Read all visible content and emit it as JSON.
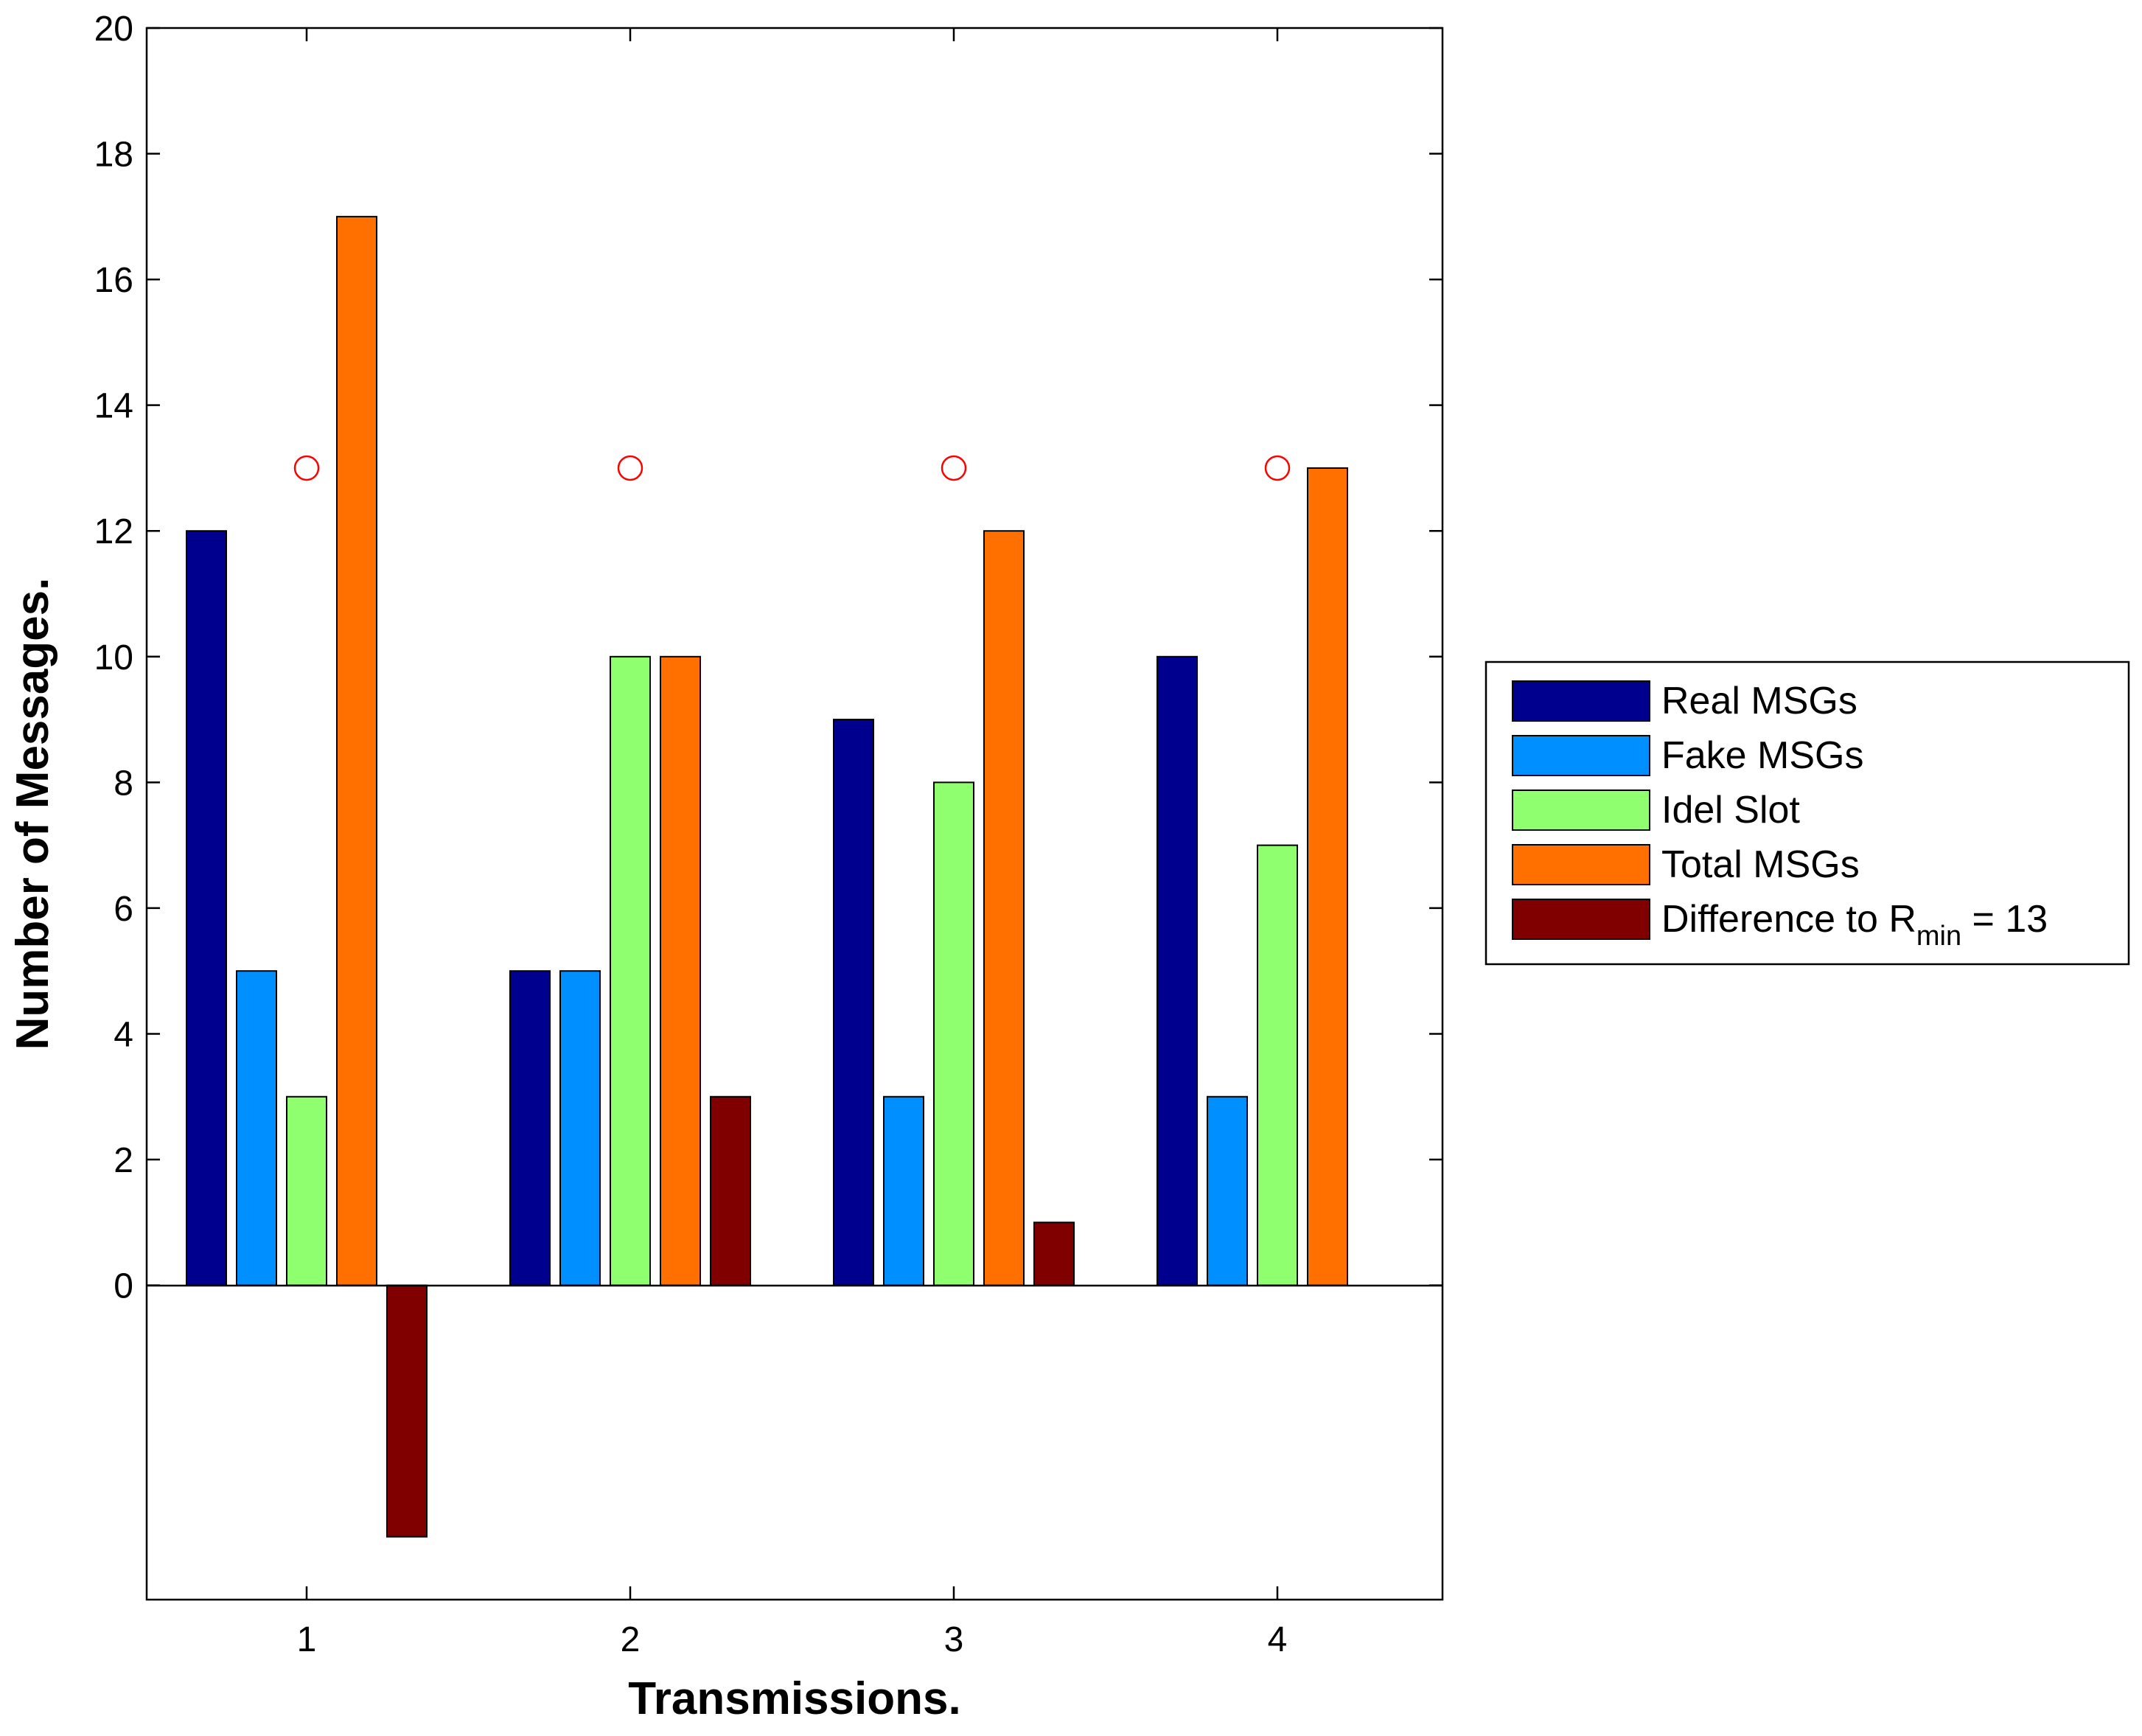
{
  "chart_data": {
    "type": "bar",
    "categories": [
      "1",
      "2",
      "3",
      "4"
    ],
    "xlabel": "Transmissions.",
    "ylabel": "Number of Messages.",
    "ylim": [
      -5,
      20
    ],
    "yticks": [
      "0",
      "2",
      "4",
      "6",
      "8",
      "10",
      "12",
      "14",
      "16",
      "18",
      "20"
    ],
    "grid": false,
    "legend_position": "right",
    "series": [
      {
        "name": "Real MSGs",
        "color": "#00008f",
        "values": [
          12,
          5,
          9,
          10
        ]
      },
      {
        "name": "Fake MSGs",
        "color": "#008fff",
        "values": [
          5,
          5,
          3,
          3
        ]
      },
      {
        "name": "Idel Slot",
        "color": "#8fff70",
        "values": [
          3,
          10,
          8,
          7
        ]
      },
      {
        "name": "Total MSGs",
        "color": "#ff7000",
        "values": [
          17,
          10,
          12,
          13
        ]
      },
      {
        "name": "Difference to R",
        "name_subscript": "min",
        "name_suffix": " = 13",
        "color": "#800000",
        "values": [
          -4,
          3,
          1,
          0
        ]
      }
    ],
    "markers": {
      "name": "R_min",
      "style": "circle",
      "color": "#ff0000",
      "values": [
        13,
        13,
        13,
        13
      ]
    }
  }
}
